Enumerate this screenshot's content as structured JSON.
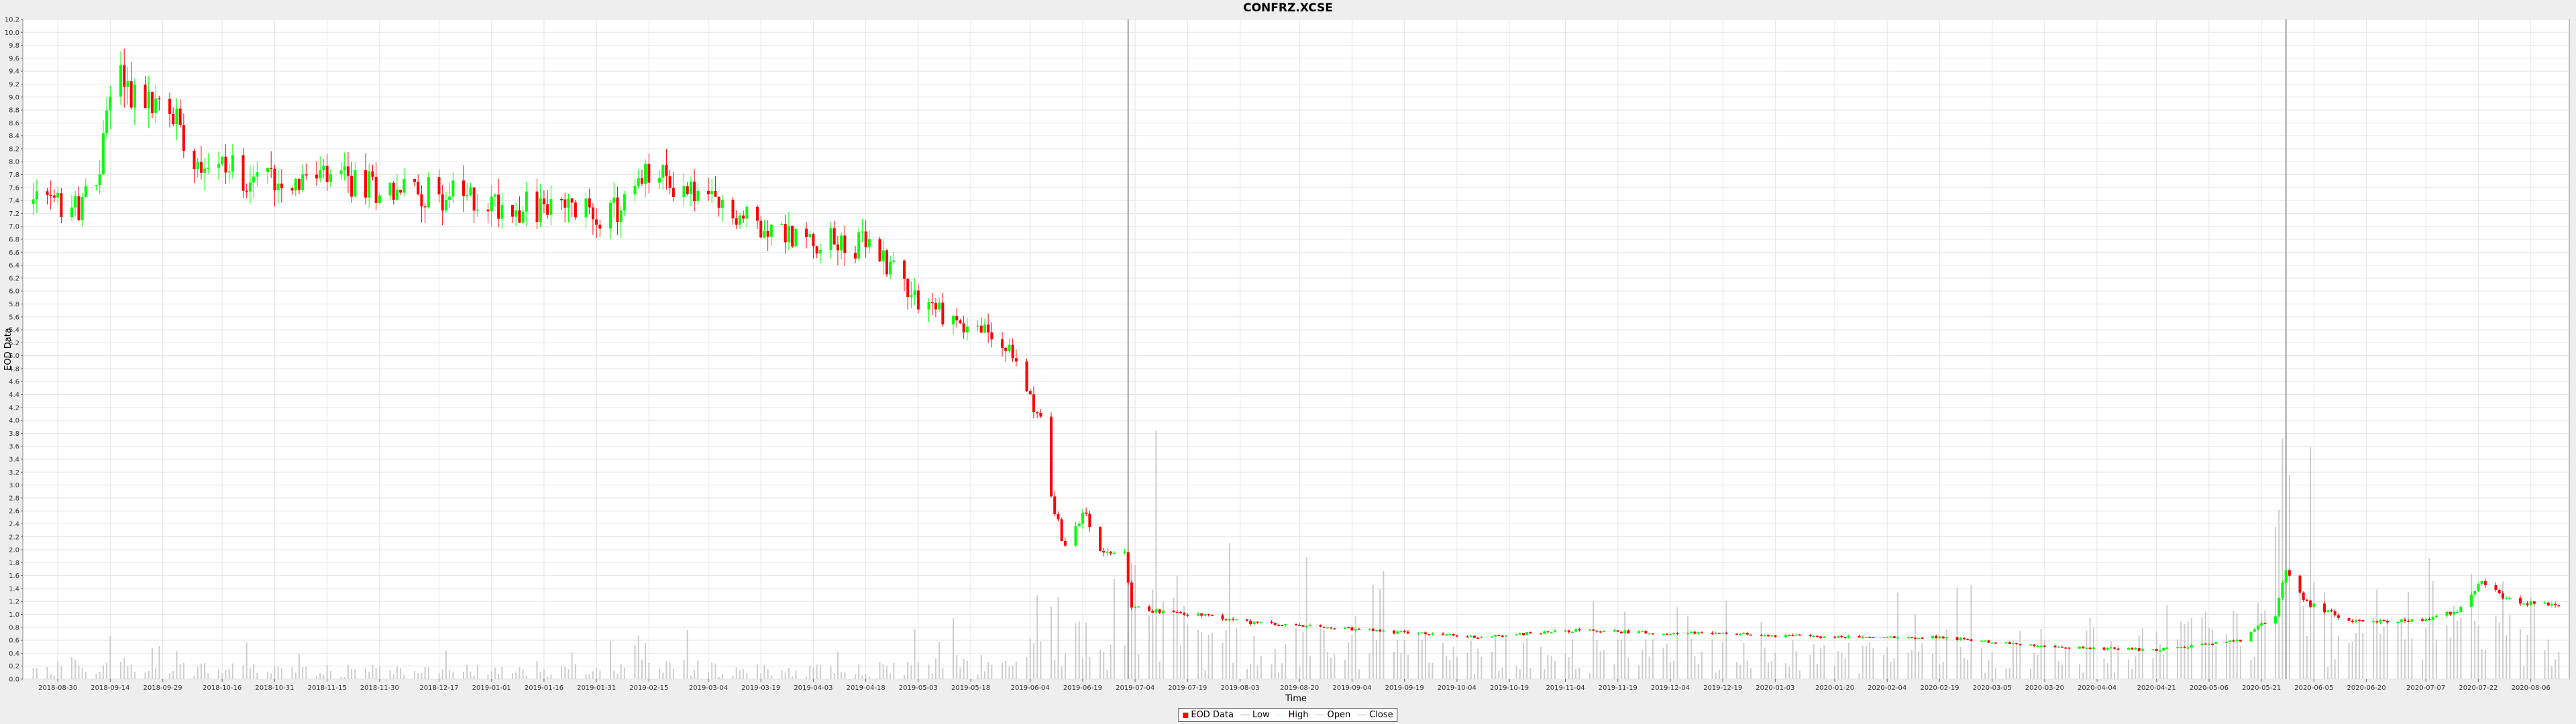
{
  "chart_data": {
    "type": "candlestick",
    "title": "CONFRZ.XCSE",
    "xlabel": "Time",
    "ylabel": "EOD Data",
    "ylim": [
      0.0,
      10.2
    ],
    "ytick_step": 0.2,
    "x_ticks": [
      "2018-08-30",
      "2018-09-14",
      "2018-09-29",
      "2018-10-16",
      "2018-10-31",
      "2018-11-15",
      "2018-11-30",
      "2018-12-17",
      "2019-01-01",
      "2019-01-16",
      "2019-01-31",
      "2019-02-15",
      "2019-03-04",
      "2019-03-19",
      "2019-04-03",
      "2019-04-18",
      "2019-05-03",
      "2019-05-18",
      "2019-06-04",
      "2019-06-19",
      "2019-07-04",
      "2019-07-19",
      "2019-08-03",
      "2019-08-20",
      "2019-09-04",
      "2019-09-19",
      "2019-10-04",
      "2019-10-19",
      "2019-11-04",
      "2019-11-19",
      "2019-12-04",
      "2019-12-19",
      "2020-01-03",
      "2020-01-20",
      "2020-02-04",
      "2020-02-19",
      "2020-03-05",
      "2020-03-20",
      "2020-04-04",
      "2020-04-21",
      "2020-05-06",
      "2020-05-21",
      "2020-06-05",
      "2020-06-20",
      "2020-07-07",
      "2020-07-22",
      "2020-08-06"
    ],
    "grid": true,
    "legend_position": "bottom",
    "series_colors": {
      "up": "#00ff00",
      "down": "#ff0000",
      "volume": "#c0c0c0",
      "marker": "#a0a0a0"
    },
    "markers": [
      {
        "date": "2019-07-02"
      },
      {
        "date": "2020-05-28"
      }
    ],
    "anchors": [
      {
        "date": "2018-08-23",
        "close": 7.35,
        "vol": 0.15
      },
      {
        "date": "2018-09-05",
        "close": 7.3,
        "vol": 0.15
      },
      {
        "date": "2018-09-10",
        "close": 7.55,
        "vol": 0.15
      },
      {
        "date": "2018-09-14",
        "close": 9.2,
        "vol": 0.3
      },
      {
        "date": "2018-09-17",
        "close": 9.4,
        "vol": 0.25
      },
      {
        "date": "2018-09-22",
        "close": 8.9,
        "vol": 0.2
      },
      {
        "date": "2018-09-29",
        "close": 8.85,
        "vol": 0.18
      },
      {
        "date": "2018-10-03",
        "close": 8.7,
        "vol": 0.18
      },
      {
        "date": "2018-10-08",
        "close": 8.1,
        "vol": 0.16
      },
      {
        "date": "2018-10-22",
        "close": 7.8,
        "vol": 0.15
      },
      {
        "date": "2018-11-15",
        "close": 7.7,
        "vol": 0.14
      },
      {
        "date": "2018-12-17",
        "close": 7.5,
        "vol": 0.14
      },
      {
        "date": "2019-01-10",
        "close": 7.3,
        "vol": 0.14
      },
      {
        "date": "2019-02-05",
        "close": 7.2,
        "vol": 0.15
      },
      {
        "date": "2019-02-15",
        "close": 7.8,
        "vol": 0.2
      },
      {
        "date": "2019-02-25",
        "close": 7.6,
        "vol": 0.2
      },
      {
        "date": "2019-03-10",
        "close": 7.2,
        "vol": 0.15
      },
      {
        "date": "2019-04-01",
        "close": 6.8,
        "vol": 0.15
      },
      {
        "date": "2019-04-18",
        "close": 6.7,
        "vol": 0.15
      },
      {
        "date": "2019-04-26",
        "close": 6.4,
        "vol": 0.2
      },
      {
        "date": "2019-05-03",
        "close": 5.9,
        "vol": 0.2
      },
      {
        "date": "2019-05-15",
        "close": 5.5,
        "vol": 0.25
      },
      {
        "date": "2019-05-25",
        "close": 5.3,
        "vol": 0.25
      },
      {
        "date": "2019-06-01",
        "close": 4.8,
        "vol": 0.3
      },
      {
        "date": "2019-06-07",
        "close": 4.0,
        "vol": 0.4
      },
      {
        "date": "2019-06-10",
        "close": 2.8,
        "vol": 0.8
      },
      {
        "date": "2019-06-14",
        "close": 2.0,
        "vol": 1.0
      },
      {
        "date": "2019-06-19",
        "close": 2.6,
        "vol": 0.6
      },
      {
        "date": "2019-06-24",
        "close": 2.0,
        "vol": 0.5
      },
      {
        "date": "2019-07-01",
        "close": 1.9,
        "vol": 0.6
      },
      {
        "date": "2019-07-03",
        "close": 1.1,
        "vol": 1.2
      },
      {
        "date": "2019-07-20",
        "close": 1.0,
        "vol": 0.7
      },
      {
        "date": "2019-08-10",
        "close": 0.85,
        "vol": 0.5
      },
      {
        "date": "2019-09-10",
        "close": 0.75,
        "vol": 0.5
      },
      {
        "date": "2019-10-10",
        "close": 0.65,
        "vol": 0.4
      },
      {
        "date": "2019-11-04",
        "close": 0.75,
        "vol": 0.4
      },
      {
        "date": "2019-12-19",
        "close": 0.7,
        "vol": 0.4
      },
      {
        "date": "2020-01-20",
        "close": 0.65,
        "vol": 0.4
      },
      {
        "date": "2020-02-19",
        "close": 0.65,
        "vol": 0.4
      },
      {
        "date": "2020-03-20",
        "close": 0.5,
        "vol": 0.5
      },
      {
        "date": "2020-04-21",
        "close": 0.45,
        "vol": 0.5
      },
      {
        "date": "2020-05-15",
        "close": 0.6,
        "vol": 0.8
      },
      {
        "date": "2020-05-25",
        "close": 1.0,
        "vol": 1.5
      },
      {
        "date": "2020-05-28",
        "close": 1.7,
        "vol": 2.5
      },
      {
        "date": "2020-06-02",
        "close": 1.2,
        "vol": 1.2
      },
      {
        "date": "2020-06-15",
        "close": 0.9,
        "vol": 0.6
      },
      {
        "date": "2020-07-07",
        "close": 0.9,
        "vol": 0.6
      },
      {
        "date": "2020-07-18",
        "close": 1.1,
        "vol": 1.0
      },
      {
        "date": "2020-07-22",
        "close": 1.5,
        "vol": 1.5
      },
      {
        "date": "2020-08-01",
        "close": 1.2,
        "vol": 0.8
      },
      {
        "date": "2020-08-14",
        "close": 1.12,
        "vol": 0.3
      }
    ]
  },
  "legend": {
    "items": [
      {
        "label": "EOD Data",
        "kind": "box",
        "color": "#ff0000"
      },
      {
        "label": "Low",
        "kind": "line",
        "color": "#9090ff"
      },
      {
        "label": "High",
        "kind": "line",
        "color": "#c0ffc0"
      },
      {
        "label": "Open",
        "kind": "line",
        "color": "#b0b0b0"
      },
      {
        "label": "Close",
        "kind": "line",
        "color": "#e0a0a0"
      }
    ]
  }
}
